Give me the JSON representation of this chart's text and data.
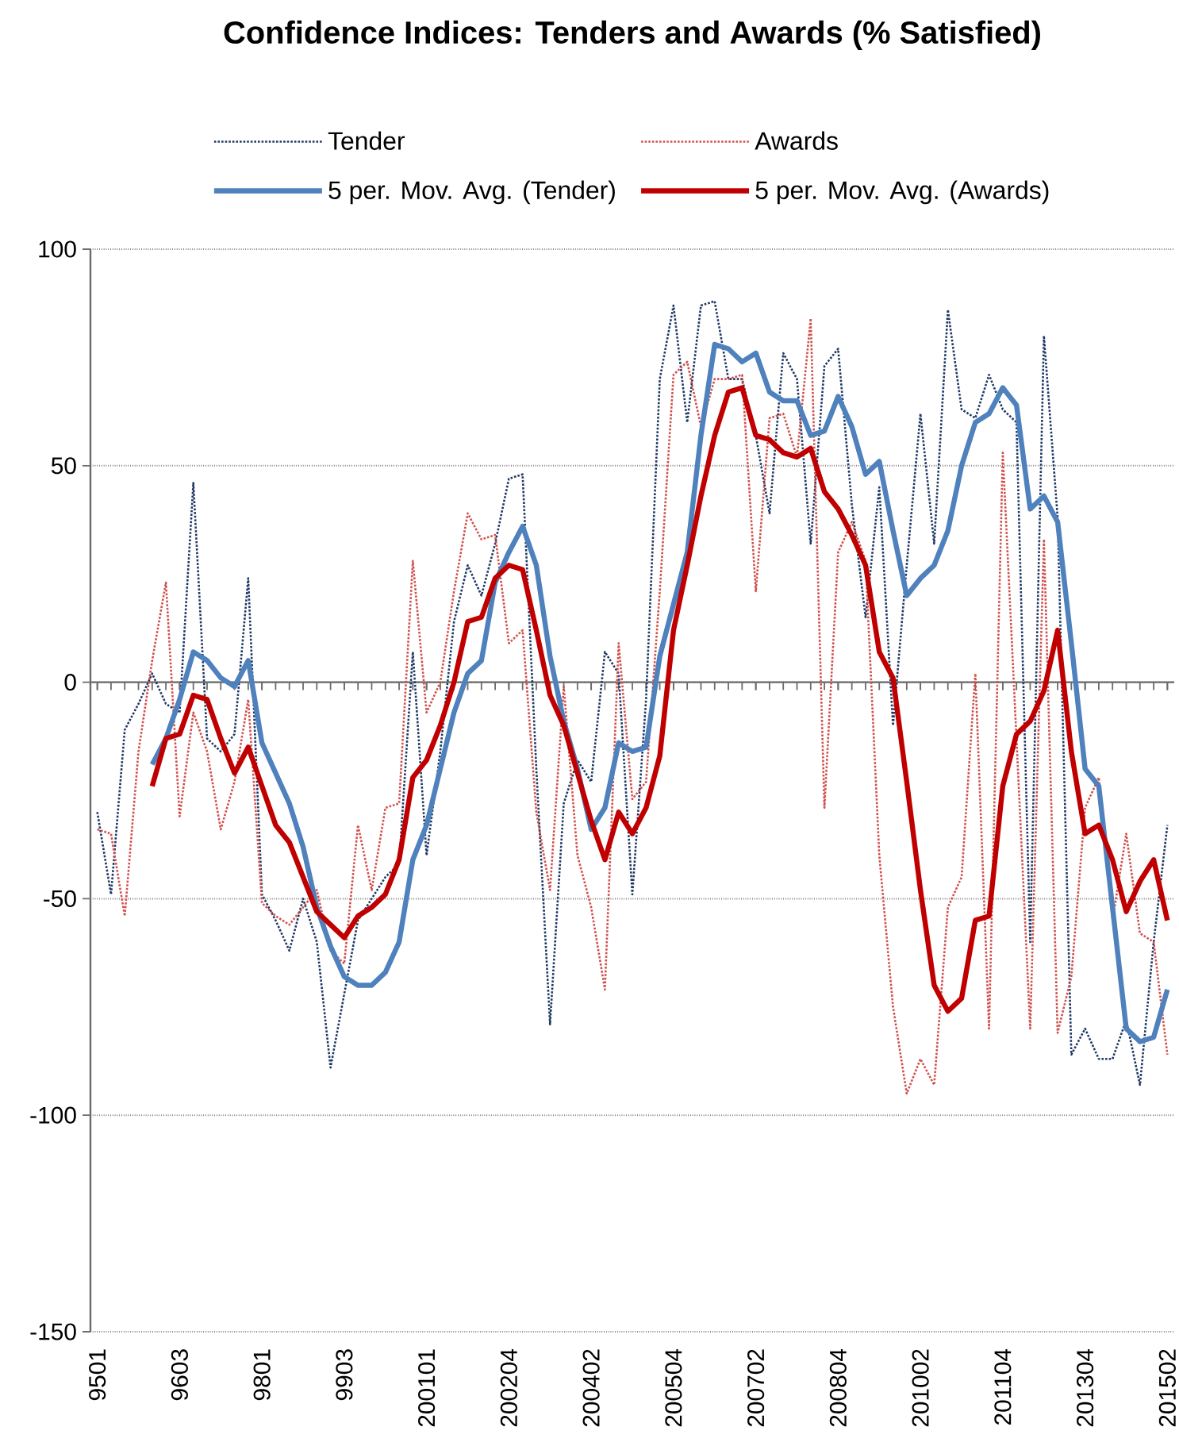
{
  "chart_data": {
    "type": "line",
    "title": "Confidence Indices: Tenders and Awards (% Satisfied)",
    "categories": [
      "9501",
      null,
      null,
      null,
      null,
      null,
      "9603",
      null,
      null,
      null,
      null,
      null,
      "9801",
      null,
      null,
      null,
      null,
      null,
      "9903",
      null,
      null,
      null,
      null,
      null,
      "200101",
      null,
      null,
      null,
      null,
      null,
      "200204",
      null,
      null,
      null,
      null,
      null,
      "200402",
      null,
      null,
      null,
      null,
      null,
      "200504",
      null,
      null,
      null,
      null,
      null,
      "200702",
      null,
      null,
      null,
      null,
      null,
      "200804",
      null,
      null,
      null,
      null,
      null,
      "201002",
      null,
      null,
      null,
      null,
      null,
      "201104",
      null,
      null,
      null,
      null,
      null,
      "201304",
      null,
      null,
      null,
      null,
      null,
      "201502"
    ],
    "series": [
      {
        "name": "Tender",
        "color": "#1f3864",
        "line_style": "dotted",
        "values": [
          -30,
          -49,
          -11,
          -5,
          2,
          -5,
          -7,
          46,
          -13,
          -16,
          -12,
          24,
          -49,
          -55,
          -62,
          -50,
          -60,
          -89,
          -72,
          -55,
          -50,
          -45,
          -42,
          7,
          -40,
          -16,
          14,
          27,
          20,
          32,
          47,
          48,
          -20,
          -79,
          -28,
          -18,
          -23,
          7,
          2,
          -49,
          -4,
          70,
          87,
          60,
          87,
          88,
          70,
          70,
          57,
          39,
          76,
          70,
          32,
          73,
          77,
          41,
          15,
          45,
          -10,
          27,
          62,
          32,
          86,
          63,
          61,
          71,
          63,
          60,
          -60,
          80,
          38,
          -86,
          -80,
          -87,
          -87,
          -78,
          -93,
          -60,
          -33
        ]
      },
      {
        "name": "Awards",
        "color": "#d0504d",
        "line_style": "dotted",
        "values": [
          -34,
          -35,
          -54,
          -16,
          5,
          23,
          -31,
          -7,
          -16,
          -34,
          -23,
          -4,
          -51,
          -54,
          -56,
          -52,
          -48,
          -62,
          -65,
          -33,
          -48,
          -29,
          -28,
          28,
          -7,
          0,
          21,
          39,
          33,
          34,
          9,
          12,
          -30,
          -48,
          -1,
          -40,
          -52,
          -71,
          9,
          -27,
          -23,
          21,
          71,
          74,
          59,
          70,
          70,
          71,
          21,
          61,
          62,
          52,
          84,
          -29,
          30,
          37,
          28,
          -40,
          -75,
          -95,
          -87,
          -93,
          -52,
          -45,
          2,
          -80,
          53,
          -13,
          -80,
          33,
          -81,
          -68,
          -29,
          -22,
          -55,
          -35,
          -58,
          -60,
          -86
        ]
      },
      {
        "name": "5 per. Mov. Avg. (Tender)",
        "color": "#4f81bd",
        "line_style": "solid",
        "values": [
          null,
          null,
          null,
          null,
          -19,
          -13,
          -4,
          7,
          5,
          1,
          -1,
          5,
          -14,
          -21,
          -28,
          -38,
          -52,
          -61,
          -68,
          -70,
          -70,
          -67,
          -60,
          -41,
          -33,
          -20,
          -7,
          2,
          5,
          23,
          30,
          36,
          27,
          6,
          -9,
          -20,
          -34,
          -29,
          -14,
          -16,
          -15,
          6,
          18,
          30,
          57,
          78,
          77,
          74,
          76,
          67,
          65,
          65,
          57,
          58,
          66,
          59,
          48,
          51,
          35,
          20,
          24,
          27,
          35,
          50,
          60,
          62,
          68,
          64,
          40,
          43,
          37,
          9,
          -20,
          -24,
          -52,
          -80,
          -83,
          -82,
          -71
        ]
      },
      {
        "name": "5 per. Mov. Avg. (Awards)",
        "color": "#c00000",
        "line_style": "solid",
        "values": [
          null,
          null,
          null,
          null,
          -24,
          -13,
          -12,
          -3,
          -4,
          -13,
          -21,
          -15,
          -24,
          -33,
          -37,
          -45,
          -53,
          -56,
          -59,
          -54,
          -52,
          -49,
          -41,
          -22,
          -18,
          -10,
          0,
          14,
          15,
          24,
          27,
          26,
          12,
          -3,
          -10,
          -21,
          -32,
          -41,
          -30,
          -35,
          -29,
          -17,
          12,
          27,
          43,
          57,
          67,
          68,
          57,
          56,
          53,
          52,
          54,
          44,
          40,
          34,
          27,
          7,
          1,
          -23,
          -48,
          -70,
          -76,
          -73,
          -55,
          -54,
          -24,
          -12,
          -9,
          -2,
          12,
          -16,
          -35,
          -33,
          -41,
          -53,
          -46,
          -41,
          -55
        ]
      }
    ],
    "ylim": [
      -150,
      100
    ],
    "yticks": [
      -150,
      -100,
      -50,
      0,
      50,
      100
    ],
    "grid": "y",
    "legend": "top"
  }
}
